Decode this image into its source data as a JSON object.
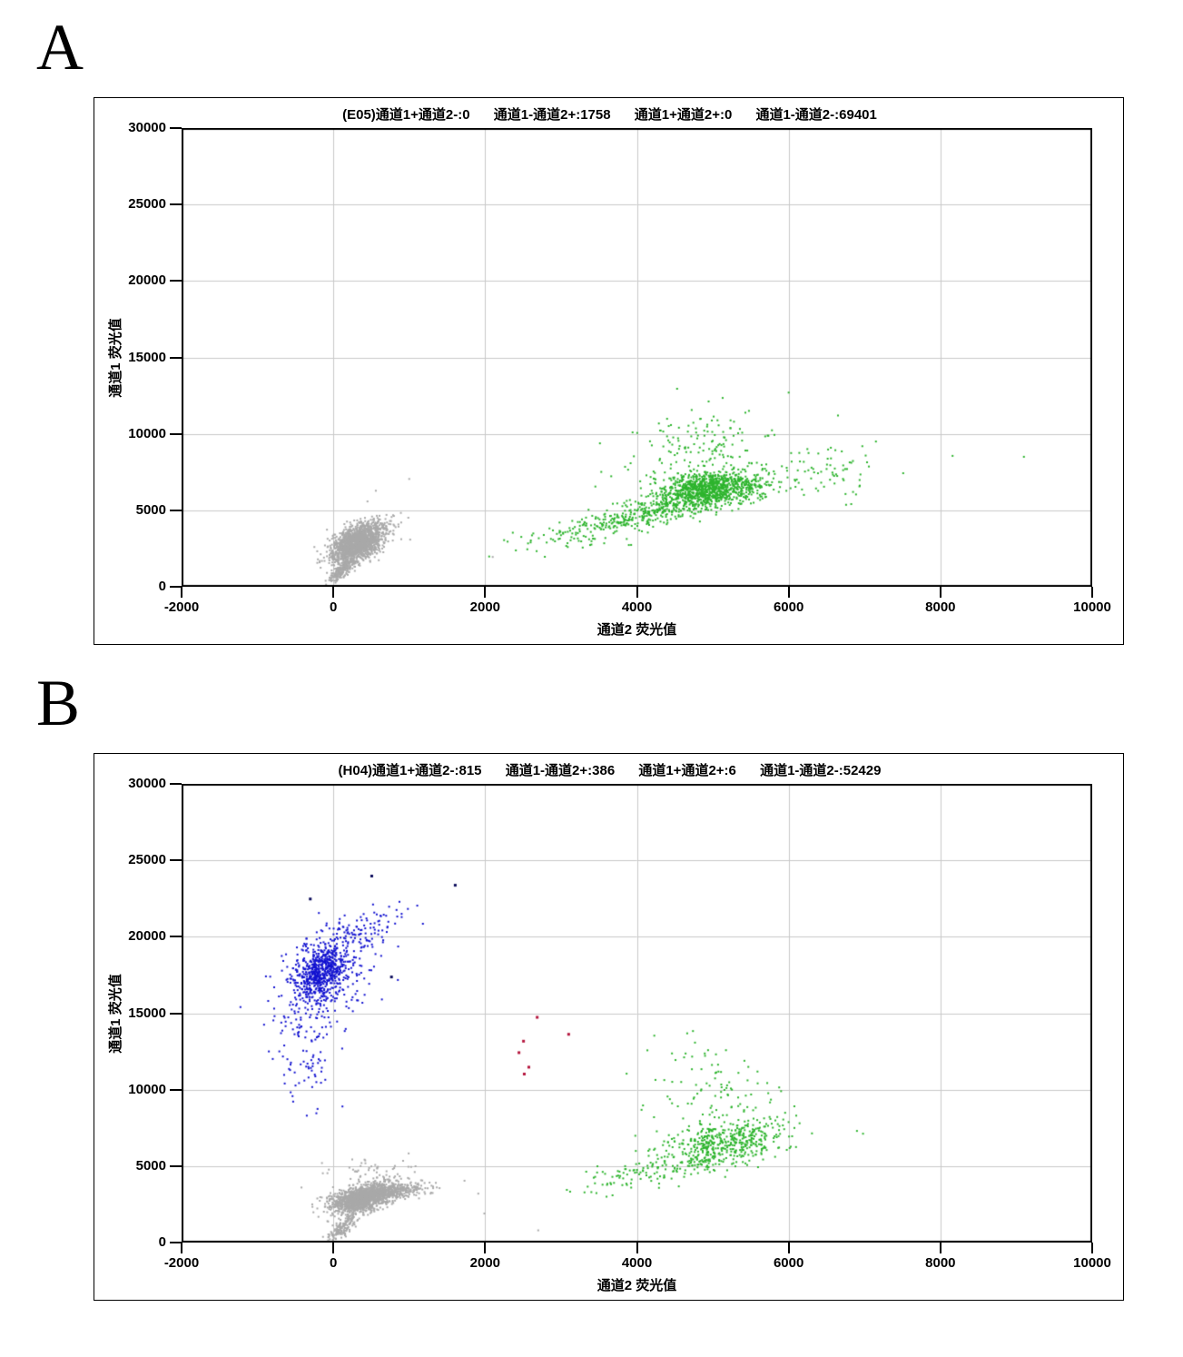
{
  "panels": [
    {
      "label": "A"
    },
    {
      "label": "B"
    }
  ],
  "chart_data": [
    {
      "type": "scatter",
      "panel": "A",
      "title_segments": [
        "(E05)通道1+通道2-:0",
        "通道1-通道2+:1758",
        "通道1+通道2+:0",
        "通道1-通道2-:69401"
      ],
      "quadrant_counts": {
        "通道1+通道2-": 0,
        "通道1-通道2+": 1758,
        "通道1+通道2+": 0,
        "通道1-通道2-": 69401
      },
      "xlabel": "通道2  荧光值",
      "ylabel": "通道1  荧光值",
      "xlim": [
        -2000,
        10000
      ],
      "ylim": [
        0,
        30000
      ],
      "xticks": [
        -2000,
        0,
        2000,
        4000,
        6000,
        8000,
        10000
      ],
      "yticks": [
        0,
        5000,
        10000,
        15000,
        20000,
        25000,
        30000
      ],
      "grid": true,
      "grid_color": "#c9c9c9",
      "axis_color": "#000000",
      "series": [
        {
          "name": "negative-cells-gray",
          "color": "#a9a9a9",
          "point_size": 2,
          "clusters": [
            {
              "n": 1700,
              "cx": 310,
              "cy": 2800,
              "sdx": 170,
              "sdy": 600,
              "rho": 0.5
            },
            {
              "n": 220,
              "cx": 130,
              "cy": 1200,
              "sdx": 85,
              "sdy": 430,
              "rho": 0.75
            },
            {
              "n": 130,
              "cx": 500,
              "cy": 3600,
              "sdx": 220,
              "sdy": 450,
              "rho": 0.2
            }
          ],
          "points": [
            [
              1000,
              7050
            ],
            [
              560,
              6280
            ],
            [
              450,
              5580
            ],
            [
              2100,
              1950
            ],
            [
              890,
              4830
            ],
            [
              -250,
              2600
            ],
            [
              700,
              4700
            ],
            [
              760,
              4300
            ],
            [
              820,
              3900
            ]
          ]
        },
        {
          "name": "channel2-positive-cells-green",
          "color": "#2db42d",
          "point_size": 2,
          "clusters": [
            {
              "n": 1050,
              "cx": 4930,
              "cy": 6350,
              "sdx": 360,
              "sdy": 620,
              "rho": 0.35
            },
            {
              "n": 400,
              "cx": 3950,
              "cy": 4500,
              "sdx": 620,
              "sdy": 850,
              "rho": 0.8
            },
            {
              "n": 150,
              "cx": 4800,
              "cy": 8900,
              "sdx": 430,
              "sdy": 1150,
              "rho": 0.1
            },
            {
              "n": 80,
              "cx": 6400,
              "cy": 7300,
              "sdx": 420,
              "sdy": 1000,
              "rho": 0.2
            }
          ],
          "points": [
            [
              8160,
              8560
            ],
            [
              9100,
              8500
            ],
            [
              7150,
              9500
            ],
            [
              6650,
              11200
            ],
            [
              4530,
              12950
            ],
            [
              5130,
              12350
            ],
            [
              6000,
              12700
            ],
            [
              2600,
              2900
            ],
            [
              2250,
              3050
            ]
          ]
        }
      ]
    },
    {
      "type": "scatter",
      "panel": "B",
      "title_segments": [
        "(H04)通道1+通道2-:815",
        "通道1-通道2+:386",
        "通道1+通道2+:6",
        "通道1-通道2-:52429"
      ],
      "quadrant_counts": {
        "通道1+通道2-": 815,
        "通道1-通道2+": 386,
        "通道1+通道2+": 6,
        "通道1-通道2-": 52429
      },
      "xlabel": "通道2  荧光值",
      "ylabel": "通道1  荧光值",
      "xlim": [
        -2000,
        10000
      ],
      "ylim": [
        0,
        30000
      ],
      "xticks": [
        -2000,
        0,
        2000,
        4000,
        6000,
        8000,
        10000
      ],
      "yticks": [
        0,
        5000,
        10000,
        15000,
        20000,
        25000,
        30000
      ],
      "grid": true,
      "grid_color": "#c9c9c9",
      "axis_color": "#000000",
      "series": [
        {
          "name": "negative-cells-gray",
          "color": "#a9a9a9",
          "point_size": 2,
          "clusters": [
            {
              "n": 1600,
              "cx": 380,
              "cy": 2900,
              "sdx": 200,
              "sdy": 470,
              "rho": 0.5
            },
            {
              "n": 320,
              "cx": 800,
              "cy": 3350,
              "sdx": 230,
              "sdy": 280,
              "rho": 0.5
            },
            {
              "n": 160,
              "cx": 120,
              "cy": 950,
              "sdx": 90,
              "sdy": 430,
              "rho": 0.7
            },
            {
              "n": 45,
              "cx": 520,
              "cy": 4700,
              "sdx": 260,
              "sdy": 330,
              "rho": 0.1
            }
          ],
          "points": [
            [
              -150,
              5200
            ],
            [
              1910,
              3200
            ],
            [
              1990,
              1900
            ],
            [
              -420,
              3600
            ],
            [
              2700,
              800
            ]
          ]
        },
        {
          "name": "channel2-positive-cells-green",
          "color": "#2db42d",
          "point_size": 2,
          "clusters": [
            {
              "n": 450,
              "cx": 5150,
              "cy": 6500,
              "sdx": 400,
              "sdy": 720,
              "rho": 0.3
            },
            {
              "n": 160,
              "cx": 4350,
              "cy": 4800,
              "sdx": 640,
              "sdy": 750,
              "rho": 0.75
            },
            {
              "n": 75,
              "cx": 5100,
              "cy": 9200,
              "sdx": 470,
              "sdy": 1100,
              "rho": 0
            },
            {
              "n": 24,
              "cx": 4800,
              "cy": 11900,
              "sdx": 380,
              "sdy": 850,
              "rho": 0
            }
          ],
          "points": [
            [
              6900,
              7300
            ],
            [
              6980,
              7120
            ],
            [
              3600,
              3000
            ],
            [
              3400,
              3300
            ],
            [
              5900,
              9900
            ],
            [
              6100,
              8300
            ],
            [
              3120,
              3330
            ]
          ]
        },
        {
          "name": "channel1-positive-cells-blue",
          "color": "#1212d0",
          "point_size": 2,
          "clusters": [
            {
              "n": 520,
              "cx": -180,
              "cy": 17700,
              "sdx": 160,
              "sdy": 850,
              "rho": 0.35
            },
            {
              "n": 270,
              "cx": -100,
              "cy": 17200,
              "sdx": 340,
              "sdy": 1650,
              "rho": 0.45
            },
            {
              "n": 110,
              "cx": 300,
              "cy": 20200,
              "sdx": 330,
              "sdy": 800,
              "rho": 0.65
            },
            {
              "n": 85,
              "cx": -330,
              "cy": 12600,
              "sdx": 190,
              "sdy": 1900,
              "rho": 0.15
            }
          ],
          "points": [
            [
              900,
              21500
            ],
            [
              1180,
              20850
            ],
            [
              -780,
              15300
            ],
            [
              640,
              15900
            ],
            [
              -850,
              12500
            ],
            [
              120,
              8900
            ],
            [
              -350,
              8300
            ]
          ]
        },
        {
          "name": "dark-outlier-cells-navy",
          "color": "#0a0a5a",
          "point_size": 3,
          "clusters": [],
          "points": [
            [
              500,
              24000
            ],
            [
              1600,
              23400
            ],
            [
              -310,
              22500
            ],
            [
              760,
              17400
            ]
          ]
        },
        {
          "name": "double-positive-cells-red",
          "color": "#b4143c",
          "point_size": 3,
          "clusters": [],
          "points": [
            [
              2680,
              14760
            ],
            [
              2500,
              13200
            ],
            [
              2440,
              12450
            ],
            [
              2570,
              11500
            ],
            [
              2510,
              11050
            ],
            [
              3095,
              13650
            ]
          ]
        }
      ]
    }
  ]
}
